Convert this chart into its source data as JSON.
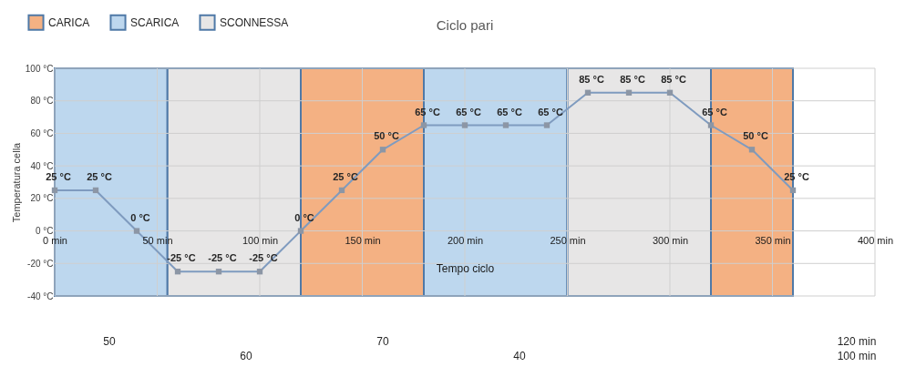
{
  "chart_data": {
    "type": "line",
    "title": "Ciclo pari",
    "xlabel": "Tempo ciclo",
    "ylabel": "Temperatura cella",
    "x": [
      0,
      20,
      40,
      60,
      80,
      100,
      120,
      140,
      160,
      180,
      200,
      220,
      240,
      260,
      280,
      300,
      320,
      340,
      360
    ],
    "series": [
      {
        "color": "#7f9bbf",
        "values": [
          25,
          25,
          0,
          -25,
          -25,
          -25,
          0,
          25,
          50,
          65,
          65,
          65,
          65,
          85,
          85,
          85,
          65,
          50,
          25
        ],
        "value_labels": [
          "25 °C",
          "25 °C",
          "0 °C",
          "-25 °C",
          "-25 °C",
          "-25 °C",
          "0 °C",
          "25 °C",
          "50 °C",
          "65 °C",
          "65 °C",
          "65 °C",
          "65 °C",
          "85 °C",
          "85 °C",
          "85 °C",
          "65 °C",
          "50 °C",
          "25 °C"
        ]
      }
    ],
    "xlim": [
      0,
      400
    ],
    "xticks": [
      {
        "value": 0,
        "label": "0 min"
      },
      {
        "value": 50,
        "label": "50 min"
      },
      {
        "value": 100,
        "label": "100 min"
      },
      {
        "value": 150,
        "label": "150 min"
      },
      {
        "value": 200,
        "label": "200 min"
      },
      {
        "value": 250,
        "label": "250 min"
      },
      {
        "value": 300,
        "label": "300 min"
      },
      {
        "value": 350,
        "label": "350 min"
      },
      {
        "value": 400,
        "label": "400 min"
      }
    ],
    "ylim": [
      -40,
      100
    ],
    "yticks": [
      {
        "value": -40,
        "label": "-40 °C"
      },
      {
        "value": -20,
        "label": "-20 °C"
      },
      {
        "value": 0,
        "label": "0 °C"
      },
      {
        "value": 20,
        "label": "20 °C"
      },
      {
        "value": 40,
        "label": "40 °C"
      },
      {
        "value": 60,
        "label": "60 °C"
      },
      {
        "value": 80,
        "label": "80 °C"
      },
      {
        "value": 100,
        "label": "100 °C"
      }
    ],
    "bands": [
      {
        "axis": "x",
        "from": 0,
        "to": 55,
        "label": "SCARICA",
        "color": "#bdd7ee"
      },
      {
        "axis": "x",
        "from": 55,
        "to": 120,
        "label": "SCONNESSA",
        "color": "#e7e6e6"
      },
      {
        "axis": "x",
        "from": 120,
        "to": 180,
        "label": "CARICA",
        "color": "#f4b183"
      },
      {
        "axis": "x",
        "from": 180,
        "to": 250,
        "color": "#bdd7ee"
      },
      {
        "axis": "x",
        "from": 250,
        "to": 320,
        "color": "#e7e6e6"
      },
      {
        "axis": "x",
        "from": 320,
        "to": 360,
        "color": "#f4b183"
      }
    ],
    "annotations": [
      "50",
      "60",
      "70",
      "40",
      "120 min",
      "100 min"
    ],
    "marker": "square",
    "grid": true,
    "legend": "top left"
  }
}
